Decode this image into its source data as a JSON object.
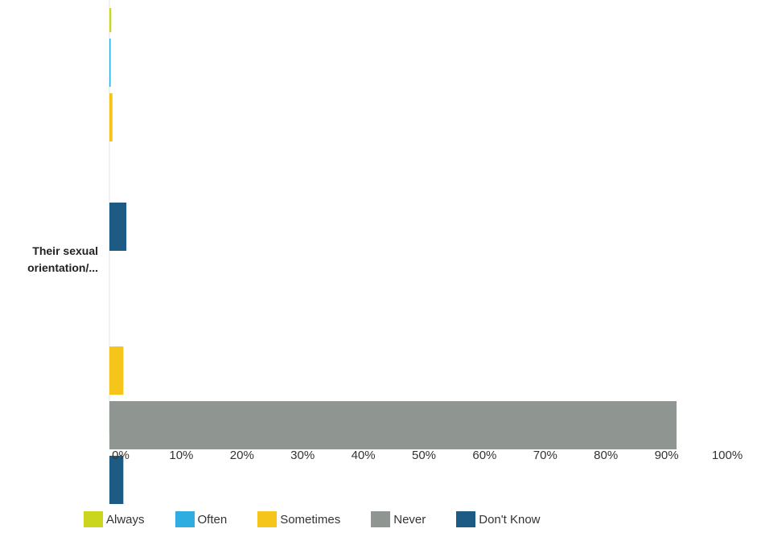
{
  "chart_data": {
    "type": "bar",
    "orientation": "horizontal",
    "categories": [
      "",
      "Their sexual orientation/..."
    ],
    "series": [
      {
        "name": "Always",
        "color": "#c9d61d",
        "values": [
          0.3,
          0.0
        ]
      },
      {
        "name": "Often",
        "color": "#2eaee0",
        "values": [
          0.2,
          0.0
        ]
      },
      {
        "name": "Sometimes",
        "color": "#f6c51b",
        "values": [
          0.5,
          2.3
        ]
      },
      {
        "name": "Never",
        "color": "#8f9692",
        "values": [
          0.0,
          93.5
        ]
      },
      {
        "name": "Don't Know",
        "color": "#1d5b84",
        "values": [
          2.8,
          2.3
        ]
      }
    ],
    "xlim": [
      0,
      100
    ],
    "xticks": [
      "0%",
      "10%",
      "20%",
      "30%",
      "40%",
      "50%",
      "60%",
      "70%",
      "80%",
      "90%",
      "100%"
    ],
    "grid": false,
    "legend": "bottom"
  }
}
